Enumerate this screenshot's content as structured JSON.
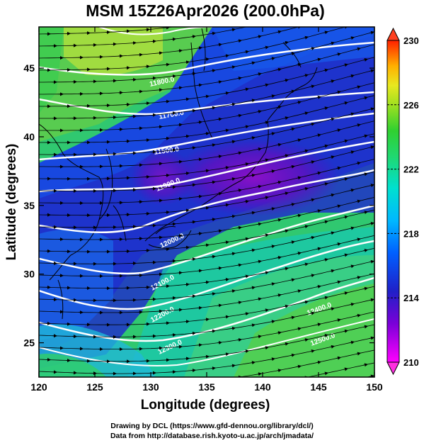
{
  "title": "MSM 15Z26Apr2026 (200.0hPa)",
  "credits": {
    "line1": "Drawing by DCL (https://www.gfd-dennou.org/library/dcl/)",
    "line2": "Data from http://database.rish.kyoto-u.ac.jp/arch/jmadata/"
  },
  "map": {
    "xlabel": "Longitude (degrees)",
    "ylabel": "Latitude  (degrees)",
    "xlim": [
      120,
      150
    ],
    "ylim": [
      22.5,
      48
    ],
    "xticks": [
      "120",
      "125",
      "130",
      "135",
      "140",
      "145",
      "150"
    ],
    "yticks": [
      "25",
      "30",
      "35",
      "40",
      "45"
    ],
    "field": "temperature",
    "contour_labels": [
      "11800.0",
      "11700.0",
      "11500.0",
      "11900.0",
      "12000.0",
      "12100.0",
      "12200.0",
      "12300.0",
      "12400.0",
      "12500.0"
    ]
  },
  "colorbar": {
    "min": 210,
    "max": 230,
    "ticks": [
      "230",
      "226",
      "222",
      "218",
      "214",
      "210"
    ]
  }
}
